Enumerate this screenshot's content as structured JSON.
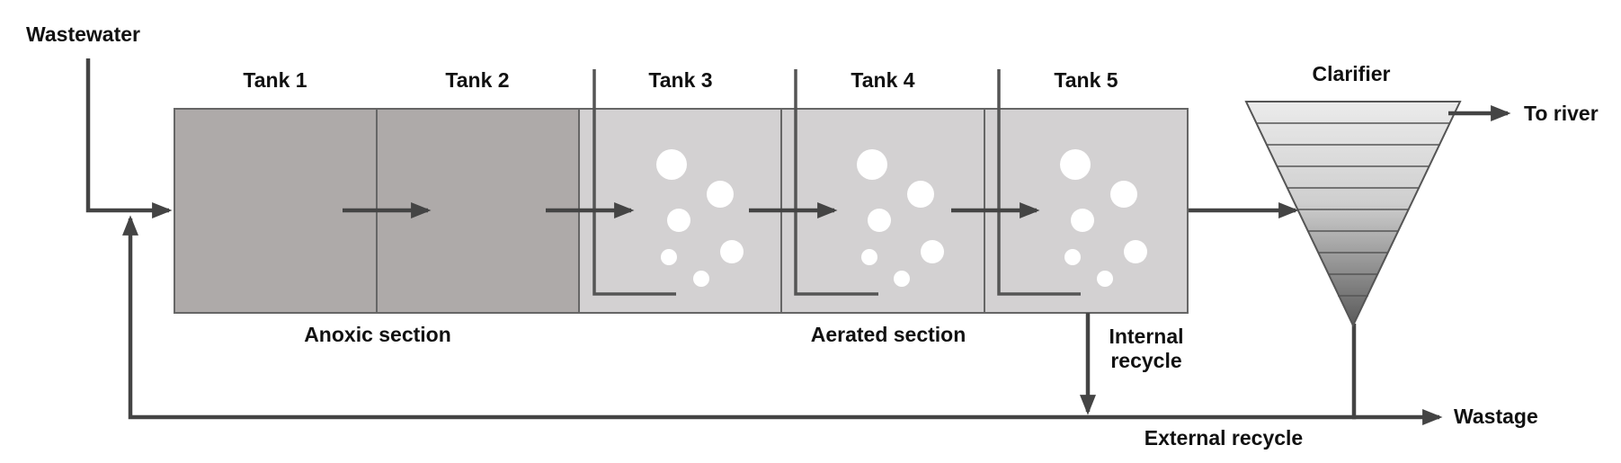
{
  "labels": {
    "wastewater": "Wastewater",
    "tank1": "Tank 1",
    "tank2": "Tank 2",
    "tank3": "Tank 3",
    "tank4": "Tank 4",
    "tank5": "Tank 5",
    "clarifier": "Clarifier",
    "to_river": "To river",
    "anoxic_section": "Anoxic section",
    "aerated_section": "Aerated section",
    "internal_recycle_line1": "Internal",
    "internal_recycle_line2": "recycle",
    "wastage": "Wastage",
    "external_recycle": "External recycle"
  },
  "colors": {
    "anoxic_fill": "#aeaaa9",
    "aerated_fill": "#d3d1d2",
    "line": "#444444",
    "bubble": "#ffffff"
  }
}
